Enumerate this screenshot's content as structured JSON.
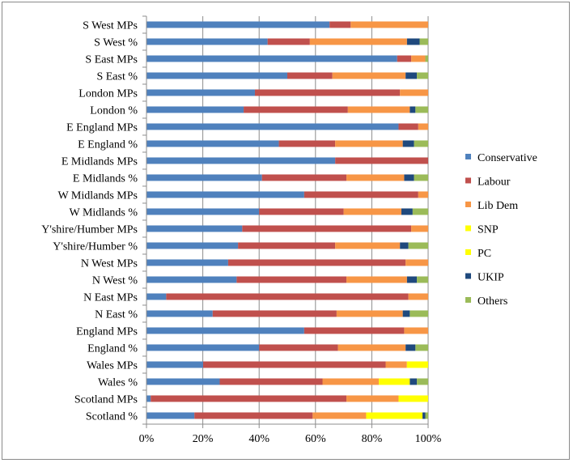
{
  "chart_data": {
    "type": "bar",
    "orientation": "horizontal",
    "stacked": "percent",
    "title": "",
    "xlabel": "",
    "ylabel": "",
    "xlim": [
      0,
      100
    ],
    "x_ticks": [
      "0%",
      "20%",
      "40%",
      "60%",
      "80%",
      "100%"
    ],
    "grid": true,
    "legend_position": "right",
    "categories": [
      "S West MPs",
      "S West %",
      "S East MPs",
      "S East %",
      "London MPs",
      "London %",
      "E England MPs",
      "E England %",
      "E Midlands MPs",
      "E Midlands %",
      "W Midlands MPs",
      "W Midlands %",
      "Y'shire/Humber MPs",
      "Y'shire/Humber %",
      "N West MPs",
      "N West %",
      "N East MPs",
      "N East %",
      "England MPs",
      "England %",
      "Wales MPs",
      "Wales %",
      "Scotland MPs",
      "Scotland %"
    ],
    "series": [
      {
        "name": "Conservative",
        "color": "#4f81bd",
        "values": [
          65,
          43,
          89,
          50,
          38.5,
          34.5,
          89.5,
          47,
          67,
          41,
          56,
          40,
          34,
          32.5,
          29,
          32,
          7,
          23.5,
          56,
          40,
          20,
          26,
          1.5,
          17
        ]
      },
      {
        "name": "Labour",
        "color": "#c0504d",
        "values": [
          7.5,
          15,
          5,
          16,
          51.5,
          37,
          7,
          20,
          33,
          30,
          40.5,
          30,
          60,
          34.5,
          63,
          39,
          86,
          44,
          35.5,
          28,
          64.5,
          36.5,
          69.5,
          42
        ]
      },
      {
        "name": "Lib Dem",
        "color": "#f79646",
        "values": [
          27.5,
          34.5,
          5,
          26,
          10,
          22,
          3.5,
          24,
          0,
          20.5,
          3.5,
          20.5,
          6,
          23,
          8,
          21.5,
          7,
          23.5,
          8.5,
          24,
          7.5,
          20,
          18.5,
          19
        ]
      },
      {
        "name": "SNP",
        "color": "#ffff00",
        "values": [
          0,
          0,
          0,
          0,
          0,
          0,
          0,
          0,
          0,
          0,
          0,
          0,
          0,
          0,
          0,
          0,
          0,
          0,
          0,
          0,
          0,
          0,
          10.5,
          20
        ]
      },
      {
        "name": "PC",
        "color": "#ffff00",
        "values": [
          0,
          0,
          0,
          0,
          0,
          0,
          0,
          0,
          0,
          0,
          0,
          0,
          0,
          0,
          0,
          0,
          0,
          0,
          0,
          0,
          7.5,
          11,
          0,
          0
        ]
      },
      {
        "name": "UKIP",
        "color": "#1f497d",
        "values": [
          0,
          4.5,
          0,
          4,
          0,
          2,
          0,
          4,
          0,
          3.5,
          0,
          4,
          0,
          3,
          0,
          3.5,
          0,
          2.5,
          0,
          3.5,
          0,
          2.5,
          0,
          1
        ]
      },
      {
        "name": "Others",
        "color": "#9bbb59",
        "values": [
          0,
          3,
          1,
          4,
          0,
          4.5,
          0,
          5,
          0,
          5,
          0,
          5.5,
          0,
          7,
          0,
          4,
          0,
          6.5,
          0,
          4.5,
          0,
          4,
          0,
          1
        ]
      }
    ]
  }
}
